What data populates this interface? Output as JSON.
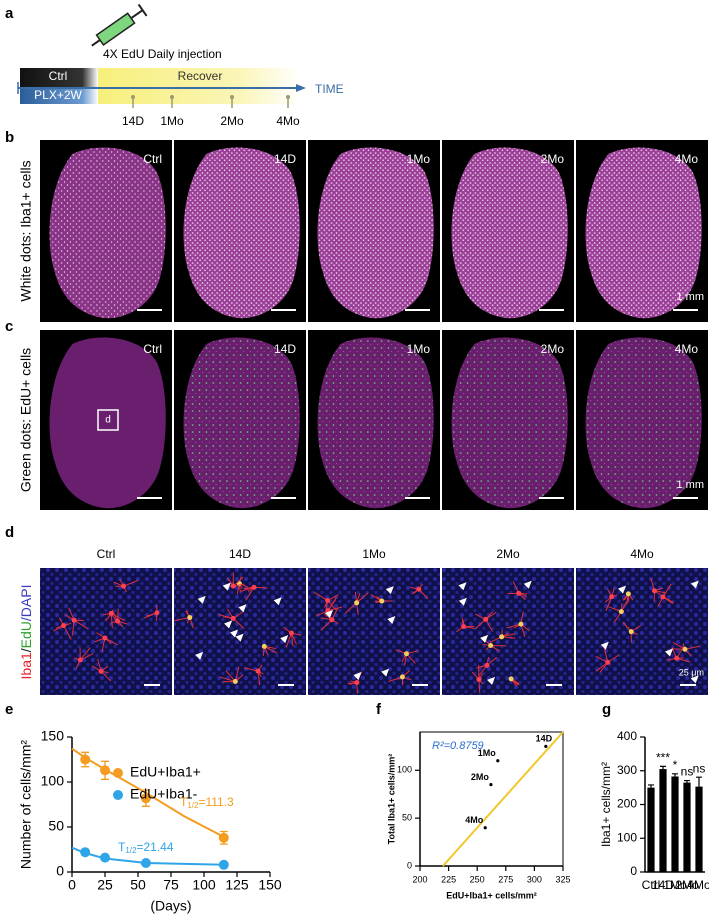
{
  "panel_labels": [
    "a",
    "b",
    "c",
    "d",
    "e",
    "f",
    "g"
  ],
  "timeline": {
    "injection": "4X EdU Daily injection",
    "ctrl": "Ctrl",
    "treatment": "PLX+2W",
    "phase": "Recover",
    "axis": "TIME",
    "timepoints": [
      "14D",
      "1Mo",
      "2Mo",
      "4Mo"
    ]
  },
  "panel_b": {
    "ylabel": "White dots: Iba1+ cells",
    "columns": [
      "Ctrl",
      "14D",
      "1Mo",
      "2Mo",
      "4Mo"
    ],
    "scale_bar": "1 mm"
  },
  "panel_c": {
    "ylabel": "Green dots: EdU+ cells",
    "columns": [
      "Ctrl",
      "14D",
      "1Mo",
      "2Mo",
      "4Mo"
    ],
    "inset": "d",
    "scale_bar": "1 mm"
  },
  "panel_d": {
    "ylabel_parts": [
      {
        "text": "Iba1",
        "color": "#e8202a"
      },
      {
        "text": "/",
        "color": "#222222"
      },
      {
        "text": "EdU",
        "color": "#2ca02c"
      },
      {
        "text": "/DAPI",
        "color": "#3b3bbf"
      }
    ],
    "columns": [
      "Ctrl",
      "14D",
      "1Mo",
      "2Mo",
      "4Mo"
    ],
    "scale_bar": "25 μm"
  },
  "chart_data": [
    {
      "type": "line",
      "xlabel": "(Days)",
      "ylabel": "Number of cells/mm²",
      "xlim": [
        0,
        150
      ],
      "xticks": [
        0,
        25,
        50,
        75,
        100,
        125,
        150
      ],
      "ylim": [
        0,
        150
      ],
      "yticks": [
        0,
        50,
        100,
        150
      ],
      "series": [
        {
          "name": "EdU+Iba1+",
          "color": "#f39c1f",
          "x": [
            10,
            25,
            56,
            115
          ],
          "values": [
            125,
            113,
            82,
            38
          ],
          "errors": [
            8,
            10,
            9,
            7
          ]
        },
        {
          "name": "EdU+Iba1-",
          "color": "#2fa4e7",
          "x": [
            10,
            25,
            56,
            115
          ],
          "values": [
            22,
            16,
            10,
            8
          ],
          "errors": [
            2,
            2,
            1,
            1
          ]
        }
      ],
      "fit_curves": [
        {
          "color": "#f39c1f",
          "x": [
            0,
            10,
            25,
            56,
            85,
            115
          ],
          "values": [
            137,
            127,
            114,
            88,
            62,
            39
          ]
        },
        {
          "color": "#2fa4e7",
          "x": [
            0,
            10,
            25,
            56,
            115
          ],
          "values": [
            27,
            21,
            15,
            10,
            8
          ]
        }
      ],
      "annotations": [
        {
          "prefix": "T",
          "sub": "1/2",
          "text": "=111.3",
          "color": "#f39c1f"
        },
        {
          "prefix": "T",
          "sub": "1/2",
          "text": "=21.44",
          "color": "#2fa4e7"
        }
      ]
    },
    {
      "type": "scatter",
      "annotation": "R²=0.8759",
      "xlabel": "EdU+Iba1+ cells/mm²",
      "ylabel": "Total Iba1+ cells/mm²",
      "xlim": [
        200,
        325
      ],
      "xticks": [
        200,
        225,
        250,
        275,
        300,
        325
      ],
      "ylim": [
        0,
        140
      ],
      "yticks": [
        0,
        50,
        100
      ],
      "points": {
        "labels": [
          "14D",
          "1Mo",
          "2Mo",
          "4Mo"
        ],
        "x": [
          310,
          268,
          262,
          257
        ],
        "values": [
          125,
          110,
          85,
          40
        ]
      },
      "fit_line": {
        "color": "#f2c72a",
        "x": [
          220,
          325
        ],
        "values": [
          0,
          140
        ]
      }
    },
    {
      "type": "bar",
      "ylabel": "Iba1+ cells/mm²",
      "categories": [
        "Ctrl",
        "14D",
        "1Mo",
        "2Mo",
        "4Mo"
      ],
      "values": [
        250,
        305,
        283,
        265,
        253
      ],
      "errors": [
        8,
        8,
        8,
        6,
        28
      ],
      "significance": [
        null,
        "***",
        "*",
        "ns",
        "ns"
      ],
      "color": "#000000",
      "ylim": [
        0,
        400
      ],
      "yticks": [
        0,
        100,
        200,
        300,
        400
      ]
    }
  ]
}
